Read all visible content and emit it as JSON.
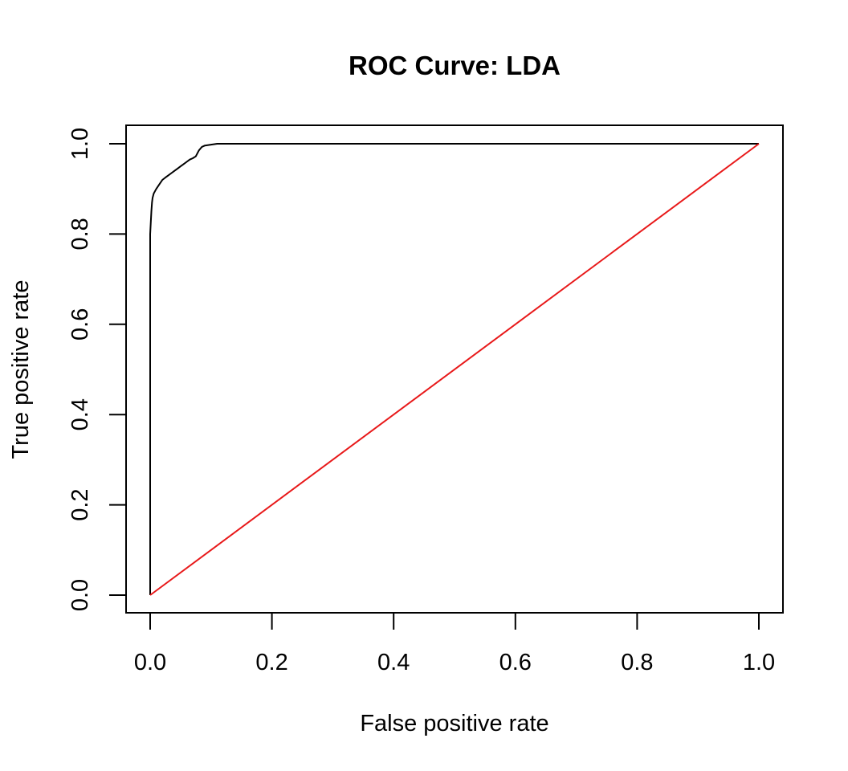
{
  "chart_data": {
    "type": "line",
    "title": "ROC Curve: LDA",
    "xlabel": "False positive rate",
    "ylabel": "True positive rate",
    "xlim": [
      0,
      1
    ],
    "ylim": [
      0,
      1
    ],
    "x_ticks": [
      "0.0",
      "0.2",
      "0.4",
      "0.6",
      "0.8",
      "1.0"
    ],
    "y_ticks": [
      "0.0",
      "0.2",
      "0.4",
      "0.6",
      "0.8",
      "1.0"
    ],
    "grid": false,
    "series": [
      {
        "color": "#000000",
        "x": [
          0,
          0,
          0.002,
          0.003,
          0.004,
          0.006,
          0.01,
          0.015,
          0.02,
          0.025,
          0.03,
          0.035,
          0.04,
          0.045,
          0.05,
          0.055,
          0.06,
          0.065,
          0.07,
          0.075,
          0.08,
          0.085,
          0.09,
          0.1,
          0.11,
          0.15,
          0.3,
          0.5,
          0.7,
          0.9,
          1.0
        ],
        "y": [
          0,
          0.8,
          0.85,
          0.87,
          0.88,
          0.89,
          0.9,
          0.91,
          0.92,
          0.925,
          0.93,
          0.935,
          0.94,
          0.945,
          0.95,
          0.955,
          0.96,
          0.965,
          0.968,
          0.972,
          0.985,
          0.993,
          0.996,
          0.998,
          1.0,
          1.0,
          1.0,
          1.0,
          1.0,
          1.0,
          1.0
        ]
      },
      {
        "color": "#e8191a",
        "x": [
          0,
          1
        ],
        "y": [
          0,
          1
        ]
      }
    ]
  }
}
